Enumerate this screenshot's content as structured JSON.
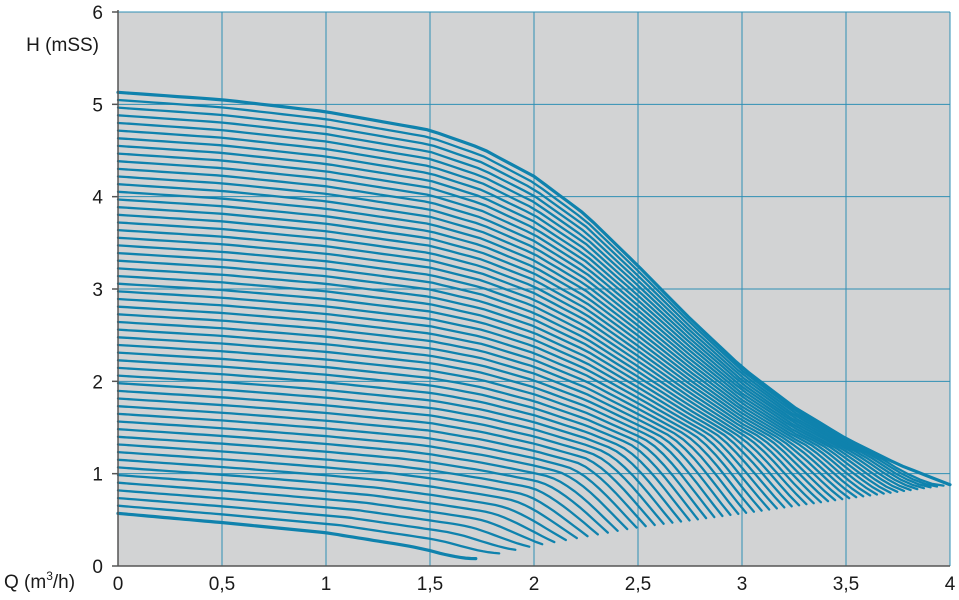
{
  "chart_data": {
    "type": "line",
    "ylabel": "H (mSS)",
    "xlabel_prefix": "Q (m",
    "xlabel_sup": "3",
    "xlabel_suffix": "/h)",
    "xlim": [
      0,
      4
    ],
    "ylim": [
      0,
      6
    ],
    "x_ticks": [
      0,
      0.5,
      1,
      1.5,
      2,
      2.5,
      3,
      3.5,
      4
    ],
    "x_tick_labels": [
      "0",
      "0,5",
      "1",
      "1,5",
      "2",
      "2,5",
      "3",
      "3,5",
      "4"
    ],
    "y_ticks": [
      0,
      1,
      2,
      3,
      4,
      5,
      6
    ],
    "y_tick_labels": [
      "0",
      "1",
      "2",
      "3",
      "4",
      "5",
      "6"
    ],
    "grid": true,
    "colors": {
      "plot_background": "#d2d3d4",
      "grid": "#2f8fb5",
      "curve": "#0f82ad",
      "axis": "#555555"
    },
    "series": [
      {
        "role": "max-speed curve",
        "x": [
          0,
          0.5,
          1,
          1.5,
          1.75,
          2,
          2.25,
          2.5,
          2.75,
          3,
          3.25,
          3.5,
          3.75,
          4
        ],
        "y": [
          5.13,
          5.05,
          4.92,
          4.72,
          4.52,
          4.22,
          3.8,
          3.25,
          2.68,
          2.15,
          1.72,
          1.38,
          1.1,
          0.88
        ]
      },
      {
        "role": "min-speed curve",
        "x": [
          0,
          0.5,
          1,
          1.5,
          1.72
        ],
        "y": [
          0.57,
          0.47,
          0.36,
          0.18,
          0.08
        ]
      },
      {
        "role": "lower envelope (end points)",
        "x": [
          1.72,
          2,
          2.5,
          3,
          3.5,
          4
        ],
        "y": [
          0.08,
          0.22,
          0.42,
          0.57,
          0.73,
          0.88
        ]
      }
    ],
    "intermediate_speed_curves": 54
  }
}
